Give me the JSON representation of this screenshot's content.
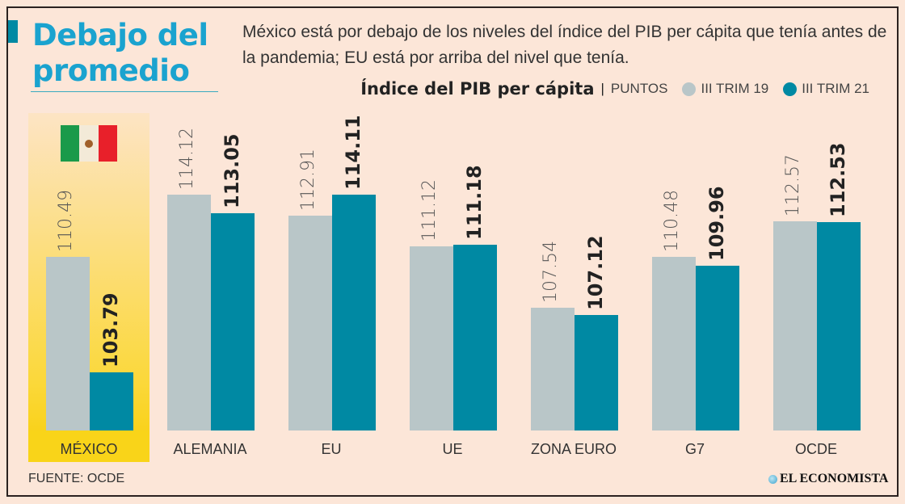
{
  "header": {
    "title_line1": "Debajo del",
    "title_line2": "promedio",
    "subtitle": "México está por debajo de los niveles del índice del PIB per cápita que tenía antes de la pandemia; EU está por arriba del nivel que tenía."
  },
  "chart_data": {
    "type": "bar",
    "title": "Índice del PIB per cápita",
    "unit": "PUNTOS",
    "categories": [
      "MÉXICO",
      "ALEMANIA",
      "EU",
      "UE",
      "ZONA EURO",
      "G7",
      "OCDE"
    ],
    "series": [
      {
        "name": "III TRIM 19",
        "color": "#b9c6c8",
        "values": [
          110.49,
          114.12,
          112.91,
          111.12,
          107.54,
          110.48,
          112.57
        ],
        "labels": [
          "110.49",
          "114.12",
          "112.91",
          "111.12",
          "107.54",
          "110.48",
          "112.57"
        ]
      },
      {
        "name": "III TRIM 21",
        "color": "#0089a3",
        "values": [
          103.79,
          113.05,
          114.11,
          111.18,
          107.12,
          109.96,
          112.53
        ],
        "labels": [
          "103.79",
          "113.05",
          "114.11",
          "111.18",
          "107.12",
          "109.96",
          "112.53"
        ]
      }
    ],
    "highlight_category": "MÉXICO",
    "legend_position": "top-right",
    "grid": false
  },
  "flag_colors": [
    "#1a9a4a",
    "#f3ead8",
    "#e8202a"
  ],
  "footer": {
    "source": "FUENTE:  OCDE",
    "logo": "EL ECONOMISTA"
  }
}
